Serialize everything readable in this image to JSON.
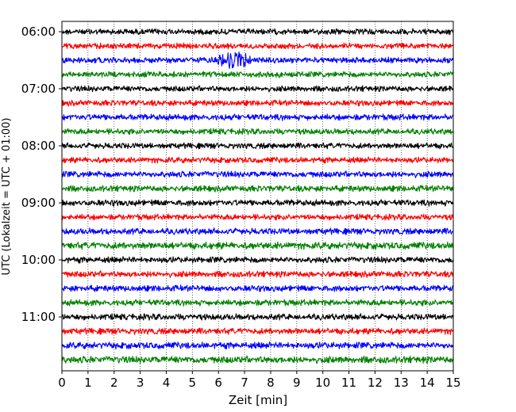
{
  "chart_data": {
    "type": "line",
    "subtype": "helicorder",
    "xlabel": "Zeit  [min]",
    "ylabel": "UTC (Lokalzeit = UTC + 01:00)",
    "xlim": [
      0,
      15
    ],
    "x_ticks": [
      "0",
      "1",
      "2",
      "3",
      "4",
      "5",
      "6",
      "7",
      "8",
      "9",
      "10",
      "11",
      "12",
      "13",
      "14",
      "15"
    ],
    "y_ticks": [
      "06:00",
      "07:00",
      "08:00",
      "09:00",
      "10:00",
      "11:00"
    ],
    "grid": "vertical dotted lines at each minute",
    "trace_interval_minutes": 15,
    "trace_colors": [
      "#000000",
      "#ff0000",
      "#0000ff",
      "#008000"
    ],
    "traces": [
      {
        "start": "06:00",
        "color": "#000000",
        "amplitude": 0.28
      },
      {
        "start": "06:15",
        "color": "#ff0000",
        "amplitude": 0.28
      },
      {
        "start": "06:30",
        "color": "#0000ff",
        "amplitude": 0.28,
        "event": {
          "minute": 6.6,
          "width_min": 1.6,
          "peak_amplitude": 1.0
        }
      },
      {
        "start": "06:45",
        "color": "#008000",
        "amplitude": 0.28
      },
      {
        "start": "07:00",
        "color": "#000000",
        "amplitude": 0.28
      },
      {
        "start": "07:15",
        "color": "#ff0000",
        "amplitude": 0.28
      },
      {
        "start": "07:30",
        "color": "#0000ff",
        "amplitude": 0.3
      },
      {
        "start": "07:45",
        "color": "#008000",
        "amplitude": 0.28
      },
      {
        "start": "08:00",
        "color": "#000000",
        "amplitude": 0.28
      },
      {
        "start": "08:15",
        "color": "#ff0000",
        "amplitude": 0.28
      },
      {
        "start": "08:30",
        "color": "#0000ff",
        "amplitude": 0.3
      },
      {
        "start": "08:45",
        "color": "#008000",
        "amplitude": 0.3
      },
      {
        "start": "09:00",
        "color": "#000000",
        "amplitude": 0.3
      },
      {
        "start": "09:15",
        "color": "#ff0000",
        "amplitude": 0.28
      },
      {
        "start": "09:30",
        "color": "#0000ff",
        "amplitude": 0.3
      },
      {
        "start": "09:45",
        "color": "#008000",
        "amplitude": 0.34
      },
      {
        "start": "10:00",
        "color": "#000000",
        "amplitude": 0.3
      },
      {
        "start": "10:15",
        "color": "#ff0000",
        "amplitude": 0.3
      },
      {
        "start": "10:30",
        "color": "#0000ff",
        "amplitude": 0.3
      },
      {
        "start": "10:45",
        "color": "#008000",
        "amplitude": 0.3
      },
      {
        "start": "11:00",
        "color": "#000000",
        "amplitude": 0.3
      },
      {
        "start": "11:15",
        "color": "#ff0000",
        "amplitude": 0.3
      },
      {
        "start": "11:30",
        "color": "#0000ff",
        "amplitude": 0.32
      },
      {
        "start": "11:45",
        "color": "#008000",
        "amplitude": 0.34
      }
    ]
  }
}
